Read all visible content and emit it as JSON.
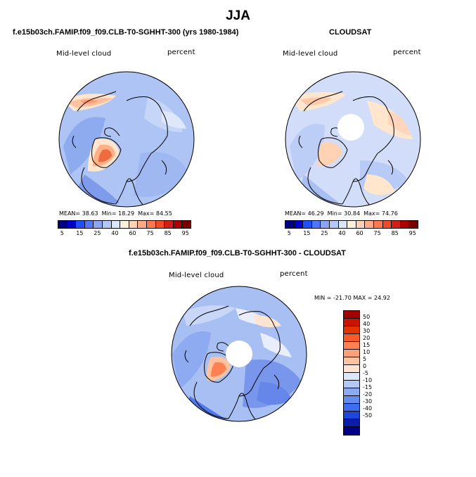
{
  "title": "JJA",
  "panels": [
    {
      "id": "model",
      "title": "f.e15b03ch.FAMIP.f09_f09.CLB-T0-SGHHT-300 (yrs 1980-1984)",
      "variable_label": "Mid-level cloud",
      "units": "percent",
      "stats": {
        "mean_label": "MEAN=",
        "mean": "38.63",
        "min_label": "Min=",
        "min": "18.29",
        "max_label": "Max=",
        "max": "84.55"
      },
      "colorbar_ticks": [
        "5",
        "15",
        "25",
        "40",
        "60",
        "75",
        "85",
        "95"
      ],
      "colors": [
        "#000080",
        "#0000cd",
        "#1e50ff",
        "#5078ff",
        "#8ca5f0",
        "#b4c8f5",
        "#dce6fa",
        "#fff0dc",
        "#ffd2b4",
        "#ffaa82",
        "#ff7850",
        "#f04b28",
        "#d21e14",
        "#aa0000",
        "#780000"
      ]
    },
    {
      "id": "cloudsat",
      "title": "CLOUDSAT",
      "variable_label": "Mid-level cloud",
      "units": "percent",
      "stats": {
        "mean_label": "MEAN=",
        "mean": "46.29",
        "min_label": "Min=",
        "min": "30.84",
        "max_label": "Max=",
        "max": "74.76"
      },
      "colorbar_ticks": [
        "5",
        "15",
        "25",
        "40",
        "60",
        "75",
        "85",
        "95"
      ],
      "colors": [
        "#000080",
        "#0000cd",
        "#1e50ff",
        "#5078ff",
        "#8ca5f0",
        "#b4c8f5",
        "#dce6fa",
        "#fff0dc",
        "#ffd2b4",
        "#ffaa82",
        "#ff7850",
        "#f04b28",
        "#d21e14",
        "#aa0000",
        "#780000"
      ]
    },
    {
      "id": "difference",
      "title": "f.e15b03ch.FAMIP.f09_f09.CLB-T0-SGHHT-300 - CLOUDSAT",
      "variable_label": "Mid-level cloud",
      "units": "percent",
      "minmax_text": "MIN = -21.70 MAX =  24.92",
      "colorbar_ticks": [
        "50",
        "40",
        "30",
        "20",
        "15",
        "10",
        "5",
        "0",
        "-5",
        "-10",
        "-15",
        "-20",
        "-30",
        "-40",
        "-50"
      ],
      "colors": [
        "#a50000",
        "#c81400",
        "#e63200",
        "#fa5a28",
        "#ff8050",
        "#ffa07a",
        "#ffc3a0",
        "#ffe4d2",
        "#dce8fa",
        "#b4c8f5",
        "#8caaf0",
        "#648cf0",
        "#3c6ef0",
        "#1e46dc",
        "#0a1eaa",
        "#00008c"
      ]
    },
    {
      "id": "chart_meta",
      "title": "",
      "variable_label": "",
      "units": ""
    }
  ],
  "chart_data": [
    {
      "type": "heatmap",
      "projection": "north polar stereographic",
      "title": "f.e15b03ch.FAMIP.f09_f09.CLB-T0-SGHHT-300 (yrs 1980-1984)",
      "variable": "Mid-level cloud",
      "units": "percent",
      "season": "JJA",
      "mean": 38.63,
      "min": 18.29,
      "max": 84.55,
      "levels": [
        5,
        10,
        15,
        20,
        25,
        30,
        40,
        50,
        60,
        70,
        75,
        80,
        85,
        90,
        95
      ]
    },
    {
      "type": "heatmap",
      "projection": "north polar stereographic",
      "title": "CLOUDSAT",
      "variable": "Mid-level cloud",
      "units": "percent",
      "season": "JJA",
      "mean": 46.29,
      "min": 30.84,
      "max": 74.76,
      "levels": [
        5,
        10,
        15,
        20,
        25,
        30,
        40,
        50,
        60,
        70,
        75,
        80,
        85,
        90,
        95
      ]
    },
    {
      "type": "heatmap",
      "projection": "north polar stereographic",
      "title": "f.e15b03ch.FAMIP.f09_f09.CLB-T0-SGHHT-300 - CLOUDSAT",
      "variable": "Mid-level cloud",
      "units": "percent",
      "season": "JJA",
      "min": -21.7,
      "max": 24.92,
      "levels": [
        -50,
        -40,
        -30,
        -20,
        -15,
        -10,
        -5,
        0,
        5,
        10,
        15,
        20,
        30,
        40,
        50
      ]
    }
  ]
}
